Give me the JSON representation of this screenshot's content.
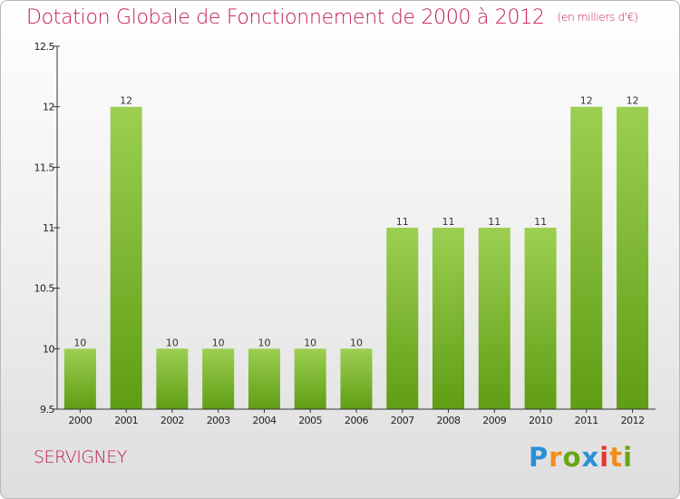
{
  "title": "Dotation Globale de Fonctionnement de 2000 à 2012",
  "unit": "(en milliers d'€)",
  "commune": "SERVIGNEY",
  "logo": [
    "P",
    "r",
    "o",
    "x",
    "i",
    "t",
    "i"
  ],
  "colors": {
    "title": "#c2185b",
    "bar_top": "#9ccf52",
    "bar_bottom": "#5f9d14",
    "axis": "#333333"
  },
  "chart_data": {
    "type": "bar",
    "categories": [
      "2000",
      "2001",
      "2002",
      "2003",
      "2004",
      "2005",
      "2006",
      "2007",
      "2008",
      "2009",
      "2010",
      "2011",
      "2012"
    ],
    "values": [
      10,
      12,
      10,
      10,
      10,
      10,
      10,
      11,
      11,
      11,
      11,
      12,
      12
    ],
    "data_labels": [
      "10",
      "12",
      "10",
      "10",
      "10",
      "10",
      "10",
      "11",
      "11",
      "11",
      "11",
      "12",
      "12"
    ],
    "title": "Dotation Globale de Fonctionnement de 2000 à 2012",
    "xlabel": "",
    "ylabel": "",
    "ylim": [
      9.5,
      12.5
    ],
    "yticks": [
      9.5,
      10,
      10.5,
      11,
      11.5,
      12,
      12.5
    ],
    "ytick_labels": [
      "9.5",
      "10",
      "10.5",
      "11",
      "11.5",
      "12",
      "12.5"
    ],
    "grid": false
  }
}
